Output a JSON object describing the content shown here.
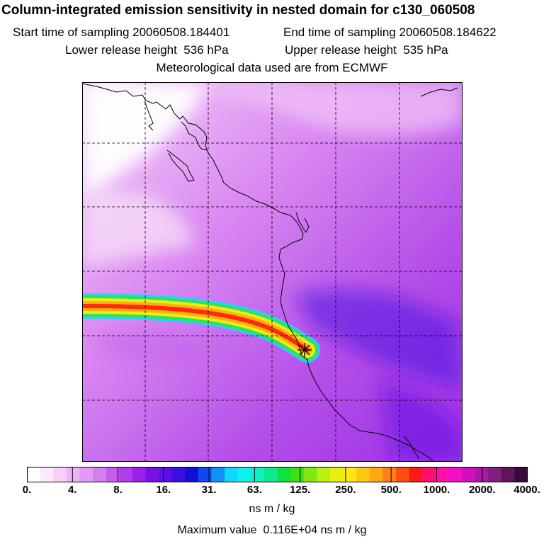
{
  "header": {
    "title": "Column-integrated emission sensitivity in nested domain for c130_060508",
    "start_label": "Start time of sampling",
    "start_value": "20060508.184401",
    "end_label": "End time of sampling",
    "end_value": "20060508.184622",
    "lower_label": "Lower release height",
    "lower_value": "536 hPa",
    "upper_label": "Upper release height",
    "upper_value": "535 hPa",
    "met_line": "Meteorological data used are from ECMWF"
  },
  "colorbar": {
    "colors": [
      "#ffffff",
      "#fde8fd",
      "#f7d0f8",
      "#efb4f5",
      "#e39af3",
      "#d47ef0",
      "#c45ded",
      "#b03ceb",
      "#9a22e8",
      "#7a10e6",
      "#5a10e4",
      "#3a10e2",
      "#1010dd",
      "#1048ee",
      "#1090f8",
      "#10d8ff",
      "#10f0ee",
      "#10f0c0",
      "#10e890",
      "#10e040",
      "#40e010",
      "#80e810",
      "#b8f010",
      "#e8f010",
      "#ffe810",
      "#ffc810",
      "#ffa810",
      "#ff8010",
      "#ff5010",
      "#ff1818",
      "#ff1070",
      "#ff10a8",
      "#f010c8",
      "#d010c0",
      "#a818a8",
      "#802080",
      "#5a185a",
      "#3a0a3a"
    ],
    "tick_labels": [
      "0.",
      "4.",
      "8.",
      "16.",
      "31.",
      "63.",
      "125.",
      "250.",
      "500.",
      "1000.",
      "2000.",
      "4000."
    ],
    "units": "ns m / kg"
  },
  "footer": {
    "max_label": "Maximum value",
    "max_value": "0.116E+04",
    "max_units": "ns m / kg"
  },
  "map": {
    "grid": "dashed",
    "receptor_marker": "asterisk"
  }
}
